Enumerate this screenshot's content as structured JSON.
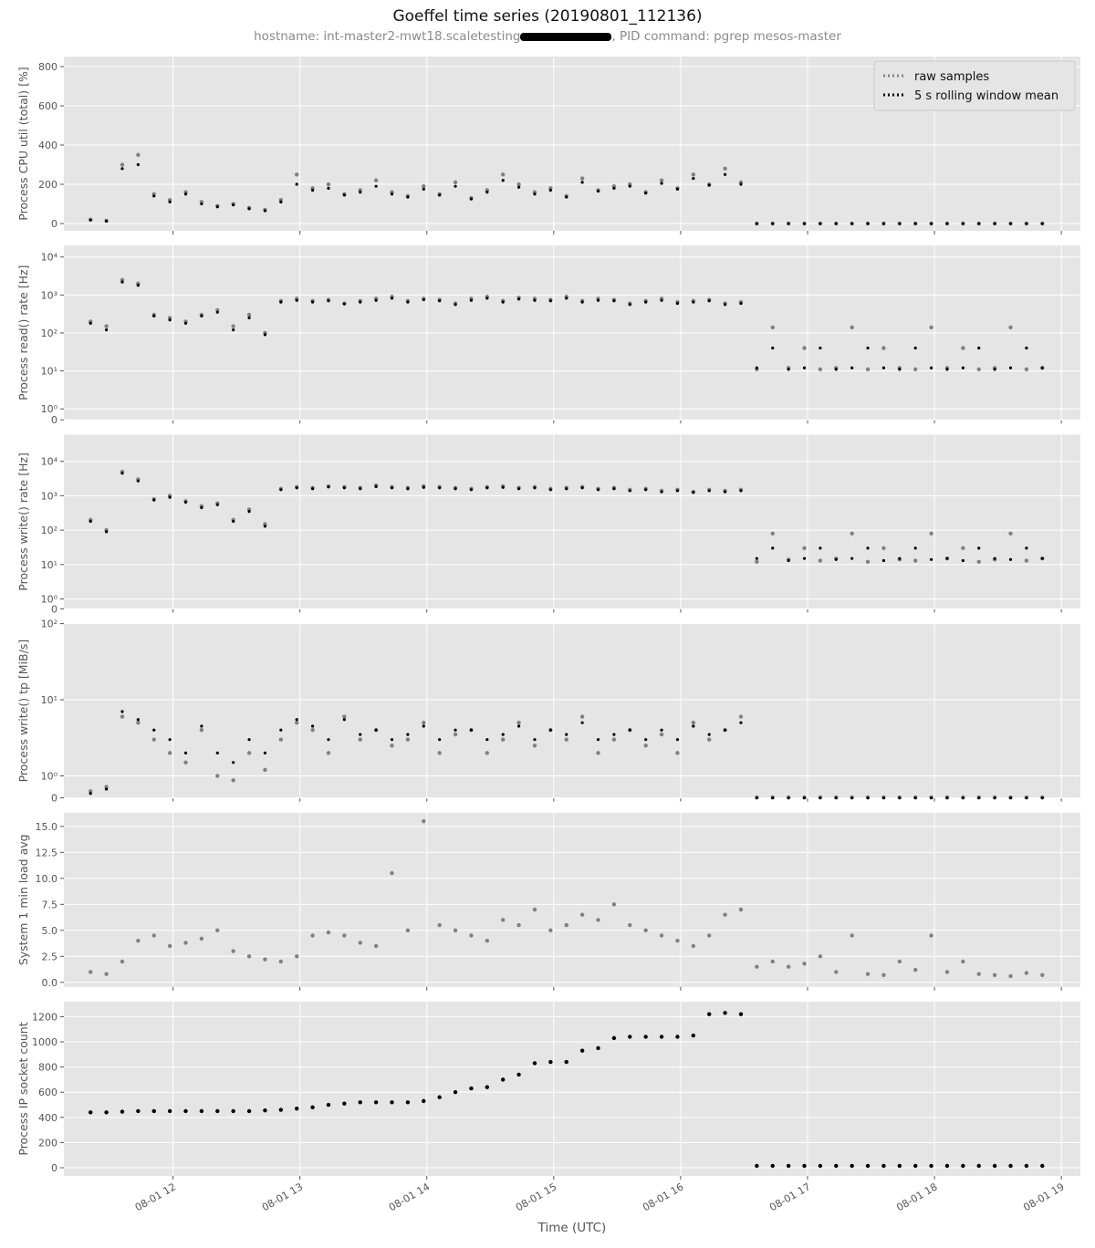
{
  "title": "Goeffel time series (20190801_112136)",
  "subtitle": [
    "hostname: int-master2-mwt18.scaletesting",
    ", PID command: pgrep mesos-master"
  ],
  "xlabel": "Time (UTC)",
  "xlim": [
    11.14,
    19.15
  ],
  "xticks": [
    {
      "value": 12,
      "label": "08-01 12"
    },
    {
      "value": 13,
      "label": "08-01 13"
    },
    {
      "value": 14,
      "label": "08-01 14"
    },
    {
      "value": 15,
      "label": "08-01 15"
    },
    {
      "value": 16,
      "label": "08-01 16"
    },
    {
      "value": 17,
      "label": "08-01 17"
    },
    {
      "value": 18,
      "label": "08-01 18"
    },
    {
      "value": 19,
      "label": "08-01 19"
    }
  ],
  "x": [
    11.35,
    11.475,
    11.6,
    11.725,
    11.85,
    11.975,
    12.1,
    12.225,
    12.35,
    12.475,
    12.6,
    12.725,
    12.85,
    12.975,
    13.1,
    13.225,
    13.35,
    13.475,
    13.6,
    13.725,
    13.85,
    13.975,
    14.1,
    14.225,
    14.35,
    14.475,
    14.6,
    14.725,
    14.85,
    14.975,
    15.1,
    15.225,
    15.35,
    15.475,
    15.6,
    15.725,
    15.85,
    15.975,
    16.1,
    16.225,
    16.35,
    16.475,
    16.6,
    16.725,
    16.85,
    16.975,
    17.1,
    17.225,
    17.35,
    17.475,
    17.6,
    17.725,
    17.85,
    17.975,
    18.1,
    18.225,
    18.35,
    18.475,
    18.6,
    18.725,
    18.85
  ],
  "chart_data": [
    {
      "type": "scatter",
      "ylabel": "Process CPU util (total) [%]",
      "ylim": [
        -37,
        851
      ],
      "yticks": [
        0,
        200,
        400,
        600,
        800
      ],
      "grid": true,
      "legend": "upper right",
      "series": [
        {
          "name": "raw samples",
          "color": "#808080",
          "values": [
            20,
            15,
            300,
            350,
            150,
            120,
            160,
            110,
            90,
            100,
            80,
            70,
            120,
            250,
            180,
            200,
            150,
            170,
            220,
            160,
            140,
            190,
            150,
            210,
            130,
            170,
            250,
            200,
            160,
            180,
            140,
            230,
            170,
            190,
            200,
            160,
            220,
            180,
            250,
            200,
            280,
            210,
            0,
            0,
            0,
            0,
            0,
            0,
            0,
            0,
            0,
            0,
            0,
            0,
            0,
            0,
            0,
            0,
            0,
            0,
            0
          ]
        },
        {
          "name": "5 s rolling window mean",
          "color": "#000000",
          "values": [
            18,
            12,
            280,
            300,
            140,
            110,
            150,
            100,
            85,
            95,
            75,
            65,
            110,
            200,
            170,
            180,
            145,
            160,
            190,
            150,
            135,
            175,
            145,
            190,
            125,
            160,
            220,
            185,
            150,
            170,
            135,
            210,
            165,
            180,
            190,
            155,
            205,
            175,
            230,
            195,
            250,
            200,
            0,
            0,
            0,
            0,
            0,
            0,
            0,
            0,
            0,
            0,
            0,
            0,
            0,
            0,
            0,
            0,
            0,
            0,
            0
          ]
        }
      ]
    },
    {
      "type": "scatter",
      "ylabel": "Process read() rate [Hz]",
      "yscale": "symlog",
      "linthresh": 1,
      "linscale": 0.26,
      "ylim": [
        0,
        20000
      ],
      "yticks": [
        0,
        {
          "value": 1,
          "label": "10⁰"
        },
        {
          "value": 10,
          "label": "10¹"
        },
        {
          "value": 100,
          "label": "10²"
        },
        {
          "value": 1000,
          "label": "10³"
        },
        {
          "value": 10000,
          "label": "10⁴"
        }
      ],
      "grid": true,
      "series": [
        {
          "color": "#808080",
          "values": [
            200,
            150,
            2500,
            2000,
            300,
            250,
            200,
            300,
            400,
            150,
            300,
            100,
            700,
            800,
            700,
            750,
            600,
            700,
            800,
            900,
            700,
            800,
            750,
            600,
            800,
            900,
            700,
            850,
            800,
            750,
            900,
            700,
            800,
            750,
            600,
            700,
            800,
            650,
            700,
            750,
            600,
            650,
            11,
            140,
            12,
            40,
            11,
            12,
            140,
            11,
            40,
            12,
            11,
            140,
            12,
            40,
            11,
            12,
            140,
            11,
            12
          ]
        },
        {
          "color": "#000000",
          "values": [
            180,
            120,
            2200,
            1800,
            280,
            220,
            180,
            280,
            350,
            120,
            250,
            90,
            650,
            720,
            650,
            700,
            580,
            650,
            720,
            820,
            650,
            750,
            700,
            560,
            720,
            820,
            650,
            780,
            720,
            700,
            820,
            650,
            720,
            700,
            560,
            650,
            720,
            600,
            650,
            700,
            560,
            600,
            12,
            40,
            11,
            12,
            40,
            11,
            12,
            40,
            12,
            11,
            40,
            12,
            11,
            12,
            40,
            11,
            12,
            40,
            12
          ]
        }
      ]
    },
    {
      "type": "scatter",
      "ylabel": "Process write() rate [Hz]",
      "yscale": "symlog",
      "linthresh": 1,
      "linscale": 0.26,
      "ylim": [
        0,
        60000
      ],
      "yticks": [
        0,
        {
          "value": 1,
          "label": "10⁰"
        },
        {
          "value": 10,
          "label": "10¹"
        },
        {
          "value": 100,
          "label": "10²"
        },
        {
          "value": 1000,
          "label": "10³"
        },
        {
          "value": 10000,
          "label": "10⁴"
        }
      ],
      "grid": true,
      "series": [
        {
          "color": "#808080",
          "values": [
            200,
            100,
            5000,
            3000,
            800,
            1000,
            700,
            500,
            600,
            200,
            400,
            150,
            1600,
            1800,
            1700,
            1900,
            1800,
            1700,
            2000,
            1800,
            1700,
            1900,
            1800,
            1700,
            1600,
            1800,
            1900,
            1700,
            1800,
            1600,
            1700,
            1800,
            1600,
            1700,
            1500,
            1600,
            1400,
            1500,
            1300,
            1500,
            1400,
            1500,
            12,
            80,
            14,
            30,
            13,
            15,
            80,
            12,
            30,
            14,
            13,
            80,
            15,
            30,
            12,
            14,
            80,
            13,
            15
          ]
        },
        {
          "color": "#000000",
          "values": [
            180,
            90,
            4500,
            2700,
            750,
            900,
            650,
            450,
            550,
            180,
            350,
            130,
            1500,
            1700,
            1600,
            1800,
            1700,
            1600,
            1850,
            1700,
            1600,
            1750,
            1700,
            1600,
            1500,
            1700,
            1750,
            1600,
            1700,
            1500,
            1600,
            1700,
            1500,
            1600,
            1400,
            1500,
            1300,
            1400,
            1250,
            1400,
            1300,
            1400,
            15,
            30,
            13,
            15,
            30,
            14,
            15,
            30,
            13,
            15,
            30,
            14,
            15,
            13,
            30,
            15,
            14,
            30,
            15
          ]
        }
      ]
    },
    {
      "type": "scatter",
      "ylabel": "Process write() tp [MiB/s]",
      "yscale": "symlog",
      "linthresh": 1,
      "linscale": 0.26,
      "ylim": [
        0,
        100
      ],
      "yticks": [
        0,
        {
          "value": 1,
          "label": "10⁰"
        },
        {
          "value": 10,
          "label": "10¹"
        },
        {
          "value": 100,
          "label": "10²"
        }
      ],
      "grid": true,
      "series": [
        {
          "color": "#808080",
          "values": [
            0.3,
            0.5,
            6,
            5,
            3,
            2,
            1.5,
            4,
            1,
            0.8,
            2,
            1.2,
            3,
            5,
            4,
            2,
            6,
            3,
            4,
            2.5,
            3,
            5,
            2,
            3.5,
            4,
            2,
            3,
            5,
            2.5,
            4,
            3,
            6,
            2,
            3,
            4,
            2.5,
            3.5,
            2,
            5,
            3,
            4,
            6,
            0.02,
            0.02,
            0.02,
            0.02,
            0.02,
            0.02,
            0.02,
            0.02,
            0.02,
            0.02,
            0.02,
            0.02,
            0.02,
            0.02,
            0.02,
            0.02,
            0.02,
            0.02,
            0.02
          ]
        },
        {
          "color": "#000000",
          "values": [
            0.2,
            0.4,
            7,
            5.5,
            4,
            3,
            2,
            4.5,
            2,
            1.5,
            3,
            2,
            4,
            5.5,
            4.5,
            3,
            5.5,
            3.5,
            4,
            3,
            3.5,
            4.5,
            3,
            4,
            4,
            3,
            3.5,
            4.5,
            3,
            4,
            3.5,
            5,
            3,
            3.5,
            4,
            3,
            4,
            3,
            4.5,
            3.5,
            4,
            5,
            0,
            0,
            0,
            0,
            0,
            0,
            0,
            0,
            0,
            0,
            0,
            0,
            0,
            0,
            0,
            0,
            0,
            0,
            0
          ]
        }
      ]
    },
    {
      "type": "scatter",
      "ylabel": "System 1 min load avg",
      "ylim": [
        -0.44,
        16.32
      ],
      "yticks": [
        {
          "value": 0,
          "label": "0.0"
        },
        2.5,
        {
          "value": 5,
          "label": "5.0"
        },
        7.5,
        {
          "value": 10,
          "label": "10.0"
        },
        12.5,
        {
          "value": 15,
          "label": "15.0"
        }
      ],
      "grid": true,
      "series": [
        {
          "color": "#808080",
          "values": [
            1.0,
            0.8,
            2.0,
            4.0,
            4.5,
            3.5,
            3.8,
            4.2,
            5.0,
            3.0,
            2.5,
            2.2,
            2.0,
            2.5,
            4.5,
            4.8,
            4.5,
            3.8,
            3.5,
            10.5,
            5.0,
            15.5,
            5.5,
            5.0,
            4.5,
            4.0,
            6.0,
            5.5,
            7.0,
            5.0,
            5.5,
            6.5,
            6.0,
            7.5,
            5.5,
            5.0,
            4.5,
            4.0,
            3.5,
            4.5,
            6.5,
            7.0,
            1.5,
            2.0,
            1.5,
            1.8,
            2.5,
            1.0,
            4.5,
            0.8,
            0.7,
            2.0,
            1.2,
            4.5,
            1.0,
            2.0,
            0.8,
            0.7,
            0.6,
            0.9,
            0.7
          ]
        }
      ]
    },
    {
      "type": "scatter",
      "ylabel": "Process IP socket count",
      "ylim": [
        -65,
        1319
      ],
      "yticks": [
        0,
        200,
        400,
        600,
        800,
        1000,
        1200
      ],
      "grid": true,
      "series": [
        {
          "color": "#000000",
          "values": [
            440,
            440,
            445,
            450,
            450,
            450,
            450,
            450,
            450,
            450,
            450,
            455,
            460,
            470,
            480,
            500,
            510,
            520,
            520,
            520,
            520,
            530,
            560,
            600,
            630,
            640,
            700,
            740,
            830,
            840,
            840,
            930,
            950,
            1030,
            1040,
            1040,
            1040,
            1040,
            1050,
            1220,
            1230,
            1220,
            15,
            15,
            15,
            15,
            15,
            15,
            15,
            15,
            15,
            15,
            15,
            15,
            15,
            15,
            15,
            15,
            15,
            15,
            15
          ]
        }
      ]
    }
  ]
}
